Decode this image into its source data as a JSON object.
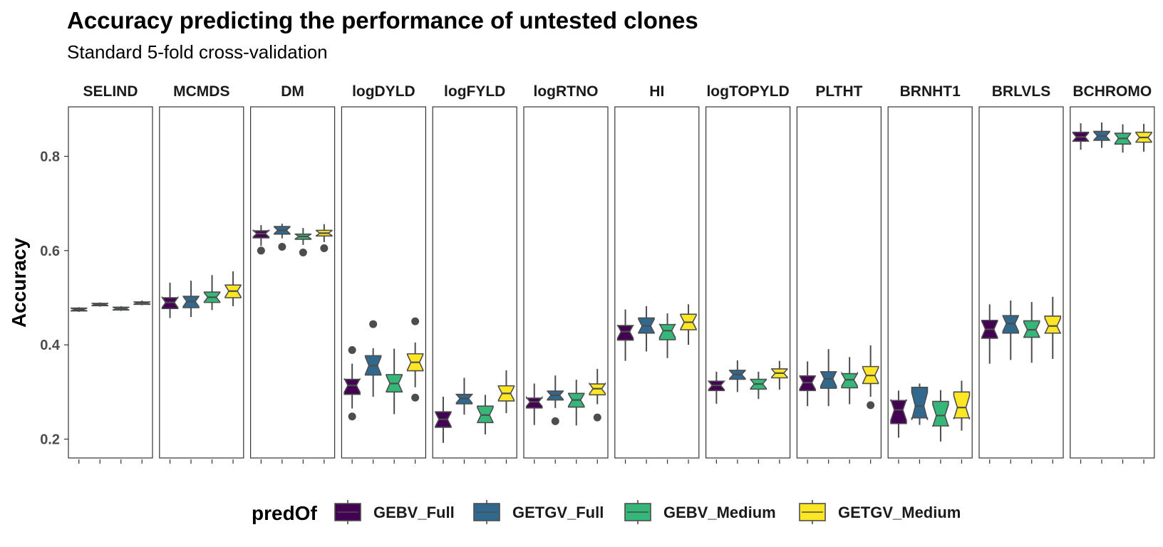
{
  "chart_data": {
    "type": "boxplot",
    "title": "Accuracy predicting the performance of untested clones",
    "subtitle": "Standard 5-fold cross-validation",
    "ylabel": "Accuracy",
    "ylim": [
      0.16,
      0.905
    ],
    "yticks": [
      0.2,
      0.4,
      0.6,
      0.8
    ],
    "ytick_labels": [
      "0.2",
      "0.4",
      "0.6",
      "0.8"
    ],
    "legend_title": "predOf",
    "legend_position": "bottom",
    "series": [
      {
        "name": "GEBV_Full",
        "color": "#440154"
      },
      {
        "name": "GETGV_Full",
        "color": "#31688E"
      },
      {
        "name": "GEBV_Medium",
        "color": "#35B779"
      },
      {
        "name": "GETGV_Medium",
        "color": "#FDE725"
      }
    ],
    "facets": [
      {
        "label": "SELIND",
        "boxes": [
          {
            "min": 0.47,
            "q1": 0.472,
            "med": 0.475,
            "q3": 0.478,
            "max": 0.48
          },
          {
            "min": 0.481,
            "q1": 0.483,
            "med": 0.486,
            "q3": 0.488,
            "max": 0.49
          },
          {
            "min": 0.472,
            "q1": 0.474,
            "med": 0.477,
            "q3": 0.48,
            "max": 0.482
          },
          {
            "min": 0.484,
            "q1": 0.486,
            "med": 0.489,
            "q3": 0.491,
            "max": 0.494
          }
        ]
      },
      {
        "label": "MCMDS",
        "boxes": [
          {
            "min": 0.457,
            "q1": 0.477,
            "med": 0.49,
            "q3": 0.5,
            "max": 0.532
          },
          {
            "min": 0.459,
            "q1": 0.479,
            "med": 0.492,
            "q3": 0.503,
            "max": 0.536
          },
          {
            "min": 0.474,
            "q1": 0.49,
            "med": 0.501,
            "q3": 0.512,
            "max": 0.548
          },
          {
            "min": 0.482,
            "q1": 0.5,
            "med": 0.514,
            "q3": 0.527,
            "max": 0.556
          }
        ]
      },
      {
        "label": "DM",
        "boxes": [
          {
            "min": 0.61,
            "q1": 0.627,
            "med": 0.636,
            "q3": 0.642,
            "max": 0.654,
            "outliers": [
              0.6
            ]
          },
          {
            "min": 0.626,
            "q1": 0.635,
            "med": 0.643,
            "q3": 0.651,
            "max": 0.657,
            "outliers": [
              0.608
            ]
          },
          {
            "min": 0.612,
            "q1": 0.624,
            "med": 0.63,
            "q3": 0.635,
            "max": 0.648,
            "outliers": [
              0.596
            ]
          },
          {
            "min": 0.618,
            "q1": 0.631,
            "med": 0.637,
            "q3": 0.643,
            "max": 0.656,
            "outliers": [
              0.605
            ]
          }
        ]
      },
      {
        "label": "logDYLD",
        "boxes": [
          {
            "min": 0.265,
            "q1": 0.295,
            "med": 0.314,
            "q3": 0.327,
            "max": 0.36,
            "outliers": [
              0.389,
              0.248
            ]
          },
          {
            "min": 0.29,
            "q1": 0.336,
            "med": 0.356,
            "q3": 0.377,
            "max": 0.393,
            "outliers": [
              0.444
            ]
          },
          {
            "min": 0.253,
            "q1": 0.3,
            "med": 0.318,
            "q3": 0.337,
            "max": 0.392
          },
          {
            "min": 0.31,
            "q1": 0.345,
            "med": 0.363,
            "q3": 0.381,
            "max": 0.405,
            "outliers": [
              0.45,
              0.288
            ]
          }
        ]
      },
      {
        "label": "logFYLD",
        "boxes": [
          {
            "min": 0.192,
            "q1": 0.225,
            "med": 0.242,
            "q3": 0.258,
            "max": 0.29
          },
          {
            "min": 0.252,
            "q1": 0.275,
            "med": 0.286,
            "q3": 0.295,
            "max": 0.33
          },
          {
            "min": 0.21,
            "q1": 0.235,
            "med": 0.251,
            "q3": 0.27,
            "max": 0.294
          },
          {
            "min": 0.255,
            "q1": 0.281,
            "med": 0.297,
            "q3": 0.313,
            "max": 0.346
          }
        ]
      },
      {
        "label": "logRTNO",
        "boxes": [
          {
            "min": 0.23,
            "q1": 0.266,
            "med": 0.279,
            "q3": 0.287,
            "max": 0.318
          },
          {
            "min": 0.266,
            "q1": 0.283,
            "med": 0.293,
            "q3": 0.302,
            "max": 0.335,
            "outliers": [
              0.238
            ]
          },
          {
            "min": 0.229,
            "q1": 0.268,
            "med": 0.283,
            "q3": 0.297,
            "max": 0.326
          },
          {
            "min": 0.274,
            "q1": 0.294,
            "med": 0.307,
            "q3": 0.317,
            "max": 0.349,
            "outliers": [
              0.246
            ]
          }
        ]
      },
      {
        "label": "HI",
        "boxes": [
          {
            "min": 0.366,
            "q1": 0.41,
            "med": 0.428,
            "q3": 0.441,
            "max": 0.475
          },
          {
            "min": 0.386,
            "q1": 0.425,
            "med": 0.44,
            "q3": 0.457,
            "max": 0.482
          },
          {
            "min": 0.372,
            "q1": 0.411,
            "med": 0.43,
            "q3": 0.443,
            "max": 0.467
          },
          {
            "min": 0.4,
            "q1": 0.432,
            "med": 0.448,
            "q3": 0.465,
            "max": 0.486
          }
        ]
      },
      {
        "label": "logTOPYLD",
        "boxes": [
          {
            "min": 0.275,
            "q1": 0.303,
            "med": 0.314,
            "q3": 0.323,
            "max": 0.343
          },
          {
            "min": 0.3,
            "q1": 0.327,
            "med": 0.337,
            "q3": 0.346,
            "max": 0.367
          },
          {
            "min": 0.285,
            "q1": 0.306,
            "med": 0.317,
            "q3": 0.327,
            "max": 0.343
          },
          {
            "min": 0.305,
            "q1": 0.33,
            "med": 0.34,
            "q3": 0.349,
            "max": 0.366
          }
        ]
      },
      {
        "label": "PLTHT",
        "boxes": [
          {
            "min": 0.27,
            "q1": 0.303,
            "med": 0.32,
            "q3": 0.334,
            "max": 0.365
          },
          {
            "min": 0.27,
            "q1": 0.308,
            "med": 0.328,
            "q3": 0.343,
            "max": 0.391
          },
          {
            "min": 0.274,
            "q1": 0.309,
            "med": 0.326,
            "q3": 0.339,
            "max": 0.374
          },
          {
            "min": 0.29,
            "q1": 0.318,
            "med": 0.335,
            "q3": 0.354,
            "max": 0.399,
            "outliers": [
              0.272
            ]
          }
        ]
      },
      {
        "label": "BRNHT1",
        "boxes": [
          {
            "min": 0.203,
            "q1": 0.233,
            "med": 0.262,
            "q3": 0.282,
            "max": 0.303
          },
          {
            "min": 0.23,
            "q1": 0.245,
            "med": 0.27,
            "q3": 0.31,
            "max": 0.318
          },
          {
            "min": 0.195,
            "q1": 0.228,
            "med": 0.25,
            "q3": 0.28,
            "max": 0.304
          },
          {
            "min": 0.218,
            "q1": 0.245,
            "med": 0.267,
            "q3": 0.3,
            "max": 0.324
          }
        ]
      },
      {
        "label": "BRLVLS",
        "boxes": [
          {
            "min": 0.36,
            "q1": 0.414,
            "med": 0.433,
            "q3": 0.452,
            "max": 0.486
          },
          {
            "min": 0.368,
            "q1": 0.425,
            "med": 0.445,
            "q3": 0.462,
            "max": 0.494
          },
          {
            "min": 0.362,
            "q1": 0.416,
            "med": 0.432,
            "q3": 0.451,
            "max": 0.491
          },
          {
            "min": 0.37,
            "q1": 0.425,
            "med": 0.44,
            "q3": 0.461,
            "max": 0.502
          }
        ]
      },
      {
        "label": "BCHROMO",
        "boxes": [
          {
            "min": 0.814,
            "q1": 0.832,
            "med": 0.841,
            "q3": 0.851,
            "max": 0.87
          },
          {
            "min": 0.818,
            "q1": 0.834,
            "med": 0.843,
            "q3": 0.853,
            "max": 0.872
          },
          {
            "min": 0.808,
            "q1": 0.826,
            "med": 0.838,
            "q3": 0.849,
            "max": 0.868
          },
          {
            "min": 0.81,
            "q1": 0.83,
            "med": 0.84,
            "q3": 0.851,
            "max": 0.869
          }
        ]
      }
    ]
  }
}
